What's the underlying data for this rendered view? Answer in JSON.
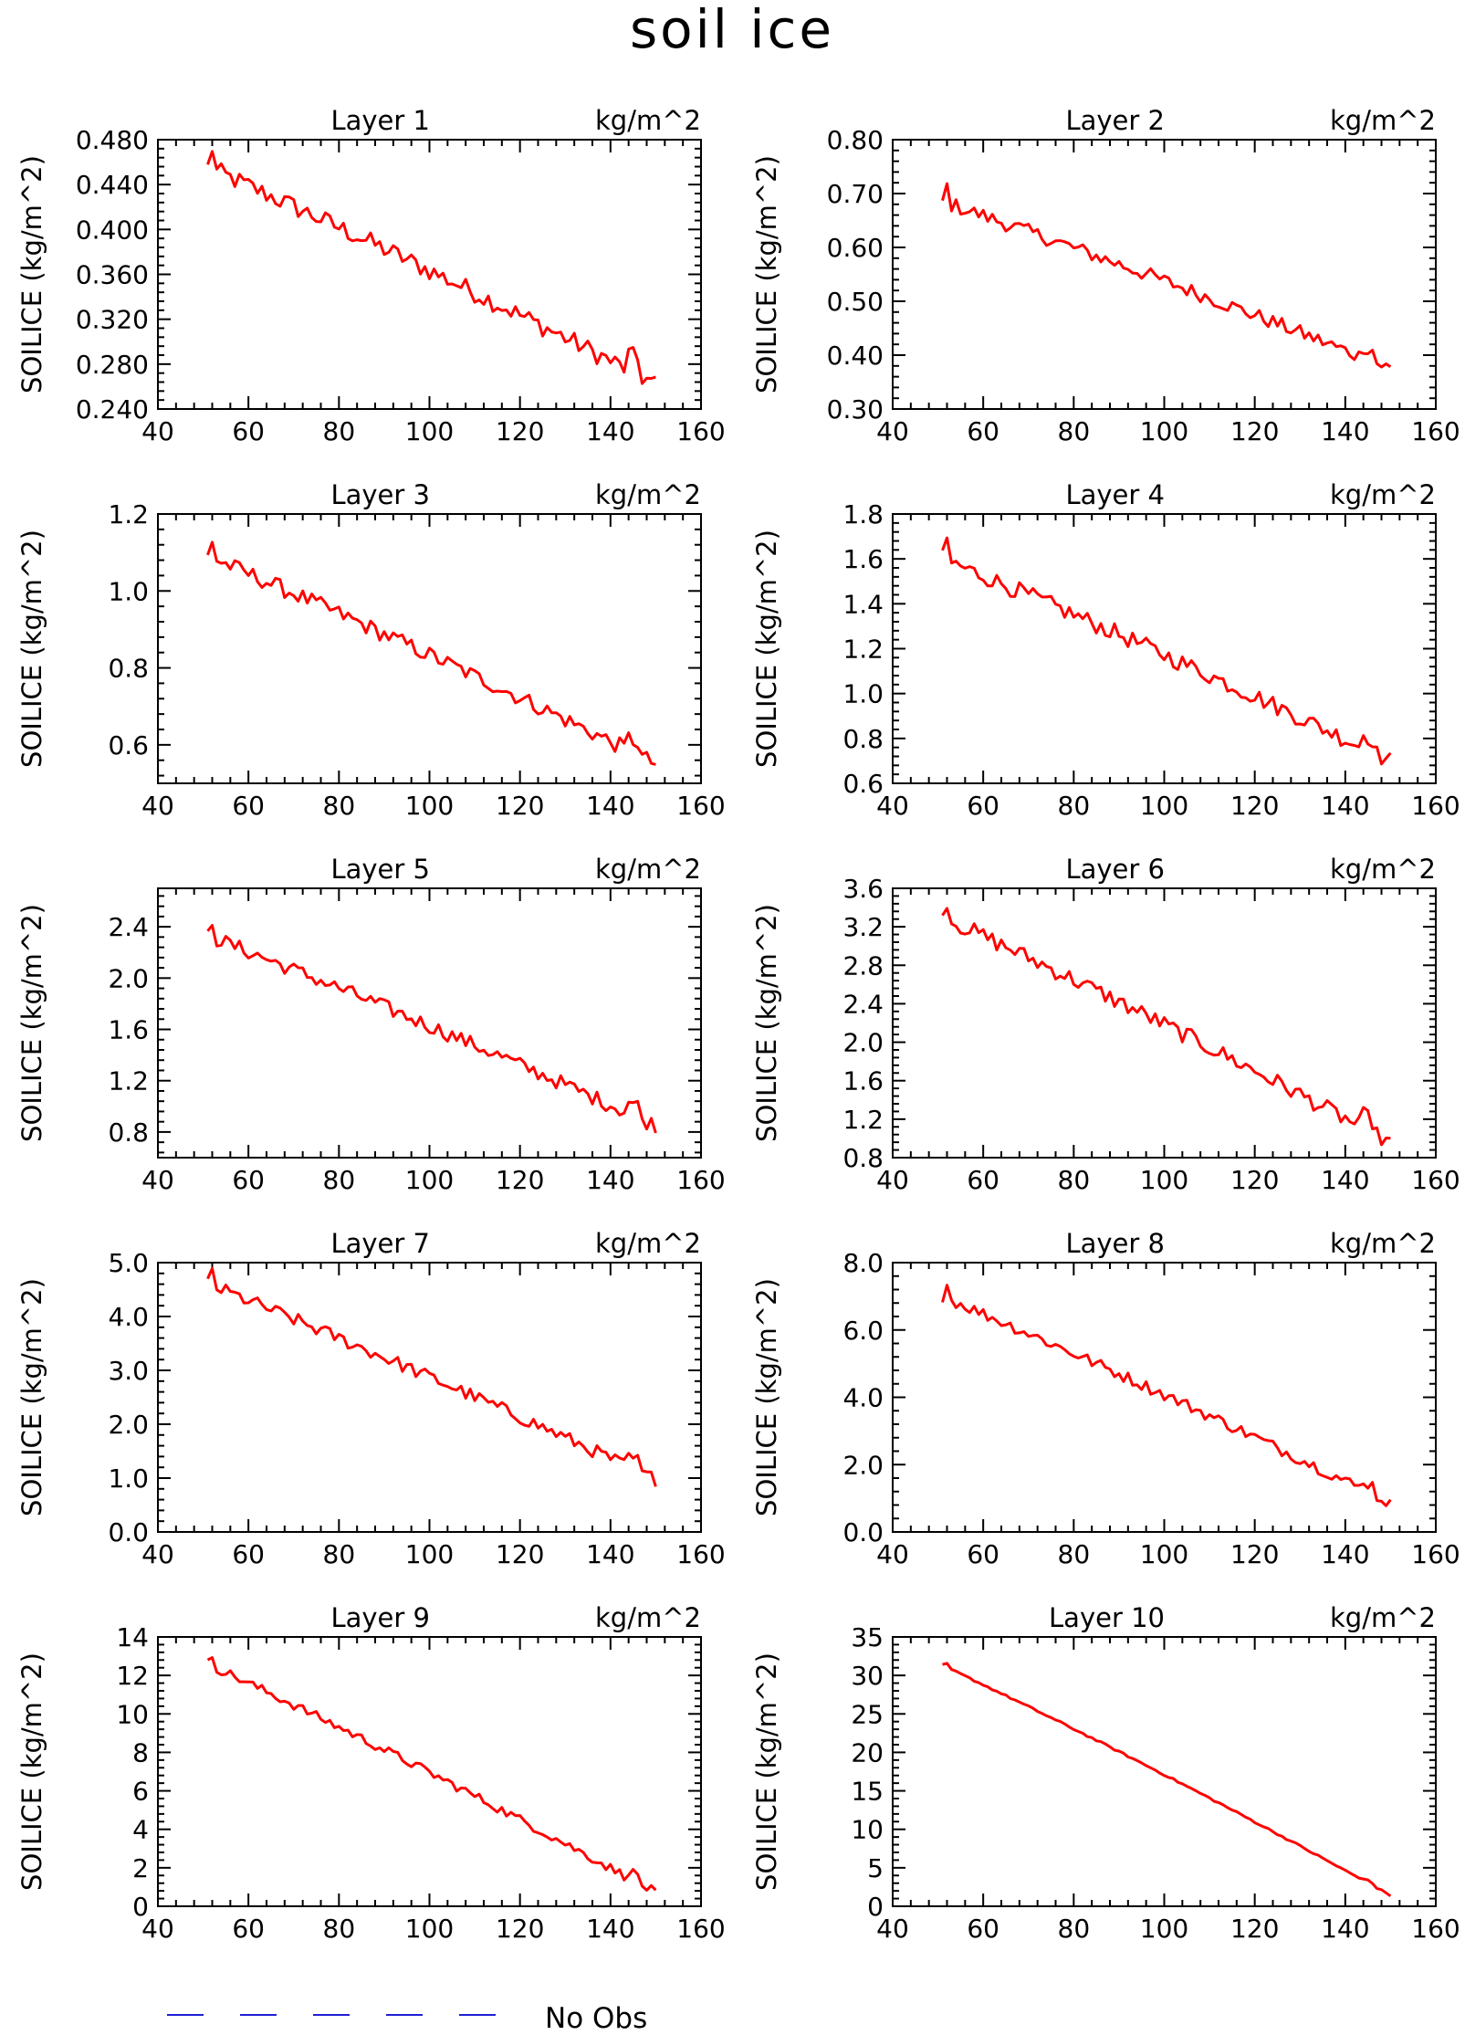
{
  "figure": {
    "title": "soil ice",
    "legend": {
      "label": "No Obs",
      "line_color": "#1f1fd6"
    }
  },
  "chart_data": [
    {
      "type": "line",
      "title": "Layer 1",
      "units": "kg/m^2",
      "ylabel": "SOILICE  (kg/m^2)",
      "xlim": [
        40,
        160
      ],
      "xticks": [
        40,
        60,
        80,
        100,
        120,
        140,
        160
      ],
      "ylim": [
        0.24,
        0.48
      ],
      "yticks": [
        "0.240",
        "0.280",
        "0.320",
        "0.360",
        "0.400",
        "0.440",
        "0.480"
      ],
      "start": 0.455,
      "end": 0.262,
      "noise": 0.009,
      "smooth": false,
      "series": [
        {
          "color": "#ff0000"
        }
      ]
    },
    {
      "type": "line",
      "title": "Layer 2",
      "units": "kg/m^2",
      "ylabel": "SOILICE  (kg/m^2)",
      "xlim": [
        40,
        160
      ],
      "xticks": [
        40,
        60,
        80,
        100,
        120,
        140,
        160
      ],
      "ylim": [
        0.3,
        0.8
      ],
      "yticks": [
        "0.30",
        "0.40",
        "0.50",
        "0.60",
        "0.70",
        "0.80"
      ],
      "start": 0.685,
      "end": 0.375,
      "noise": 0.014,
      "smooth": false,
      "series": [
        {
          "color": "#ff0000"
        }
      ]
    },
    {
      "type": "line",
      "title": "Layer 3",
      "units": "kg/m^2",
      "ylabel": "SOILICE  (kg/m^2)",
      "xlim": [
        40,
        160
      ],
      "xticks": [
        40,
        60,
        80,
        100,
        120,
        140,
        160
      ],
      "ylim": [
        0.5,
        1.2
      ],
      "yticks": [
        "0.6",
        "0.8",
        "1.0",
        "1.2"
      ],
      "start": 1.09,
      "end": 0.55,
      "noise": 0.022,
      "smooth": false,
      "series": [
        {
          "color": "#ff0000"
        }
      ]
    },
    {
      "type": "line",
      "title": "Layer 4",
      "units": "kg/m^2",
      "ylabel": "SOILICE  (kg/m^2)",
      "xlim": [
        40,
        160
      ],
      "xticks": [
        40,
        60,
        80,
        100,
        120,
        140,
        160
      ],
      "ylim": [
        0.6,
        1.8
      ],
      "yticks": [
        "0.6",
        "0.8",
        "1.0",
        "1.2",
        "1.4",
        "1.6",
        "1.8"
      ],
      "start": 1.6,
      "end": 0.7,
      "noise": 0.04,
      "smooth": false,
      "series": [
        {
          "color": "#ff0000"
        }
      ]
    },
    {
      "type": "line",
      "title": "Layer 5",
      "units": "kg/m^2",
      "ylabel": "SOILICE  (kg/m^2)",
      "xlim": [
        40,
        160
      ],
      "xticks": [
        40,
        60,
        80,
        100,
        120,
        140,
        160
      ],
      "ylim": [
        0.6,
        2.7
      ],
      "yticks": [
        "0.8",
        "1.2",
        "1.6",
        "2.0",
        "2.4"
      ],
      "start": 2.33,
      "end": 0.85,
      "noise": 0.06,
      "smooth": false,
      "series": [
        {
          "color": "#ff0000"
        }
      ]
    },
    {
      "type": "line",
      "title": "Layer 6",
      "units": "kg/m^2",
      "ylabel": "SOILICE  (kg/m^2)",
      "xlim": [
        40,
        160
      ],
      "xticks": [
        40,
        60,
        80,
        100,
        120,
        140,
        160
      ],
      "ylim": [
        0.8,
        3.6
      ],
      "yticks": [
        "0.8",
        "1.2",
        "1.6",
        "2.0",
        "2.4",
        "2.8",
        "3.2",
        "3.6"
      ],
      "start": 3.3,
      "end": 0.95,
      "noise": 0.09,
      "smooth": false,
      "series": [
        {
          "color": "#ff0000"
        }
      ]
    },
    {
      "type": "line",
      "title": "Layer 7",
      "units": "kg/m^2",
      "ylabel": "SOILICE  (kg/m^2)",
      "xlim": [
        40,
        160
      ],
      "xticks": [
        40,
        60,
        80,
        100,
        120,
        140,
        160
      ],
      "ylim": [
        0,
        5
      ],
      "yticks": [
        "0.0",
        "1.0",
        "2.0",
        "3.0",
        "4.0",
        "5.0"
      ],
      "start": 4.6,
      "end": 0.97,
      "noise": 0.13,
      "smooth": false,
      "series": [
        {
          "color": "#ff0000"
        }
      ]
    },
    {
      "type": "line",
      "title": "Layer 8",
      "units": "kg/m^2",
      "ylabel": "SOILICE  (kg/m^2)",
      "xlim": [
        40,
        160
      ],
      "xticks": [
        40,
        60,
        80,
        100,
        120,
        140,
        160
      ],
      "ylim": [
        0,
        8
      ],
      "yticks": [
        "0.0",
        "2.0",
        "4.0",
        "6.0",
        "8.0"
      ],
      "start": 7.0,
      "end": 0.85,
      "noise": 0.18,
      "smooth": false,
      "series": [
        {
          "color": "#ff0000"
        }
      ]
    },
    {
      "type": "line",
      "title": "Layer 9",
      "units": "kg/m^2",
      "ylabel": "SOILICE  (kg/m^2)",
      "xlim": [
        40,
        160
      ],
      "xticks": [
        40,
        60,
        80,
        100,
        120,
        140,
        160
      ],
      "ylim": [
        0,
        14
      ],
      "yticks": [
        "0",
        "2",
        "4",
        "6",
        "8",
        "10",
        "12",
        "14"
      ],
      "start": 12.6,
      "end": 0.7,
      "noise": 0.25,
      "smooth": false,
      "series": [
        {
          "color": "#ff0000"
        }
      ]
    },
    {
      "type": "line",
      "title": "Layer 10",
      "units": "kg/m^2",
      "ylabel": "SOILICE  (kg/m^2)",
      "xlim": [
        40,
        160
      ],
      "xticks": [
        40,
        60,
        80,
        100,
        120,
        140,
        160
      ],
      "ylim": [
        0,
        35
      ],
      "yticks": [
        "0",
        "5",
        "10",
        "15",
        "20",
        "25",
        "30",
        "35"
      ],
      "start": 31.3,
      "end": 1.4,
      "noise": 0.2,
      "smooth": true,
      "series": [
        {
          "color": "#ff0000"
        }
      ]
    }
  ]
}
